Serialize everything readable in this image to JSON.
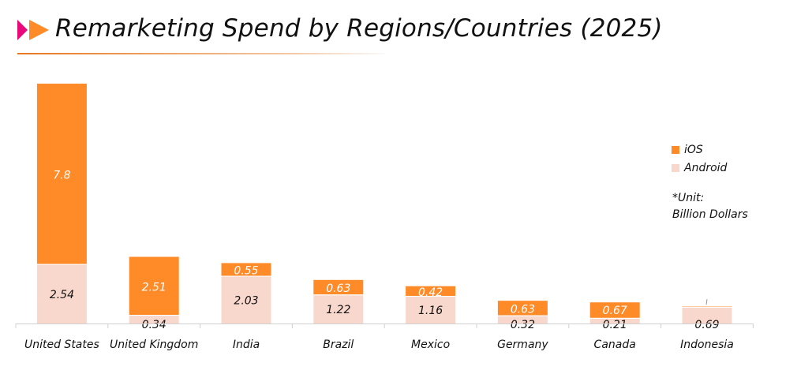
{
  "title": "Remarketing Spend by Regions/Countries (2025)",
  "icon": "double-play-arrow-icon",
  "colors": {
    "ios": "#FF8A28",
    "android": "#F8D8CC",
    "accent_pink": "#E8087A",
    "accent_orange": "#FF8A28"
  },
  "chart_data": {
    "type": "bar",
    "stacked": true,
    "title": "Remarketing Spend by Regions/Countries (2025)",
    "categories": [
      "United States",
      "United Kingdom",
      "India",
      "Brazil",
      "Mexico",
      "Germany",
      "Canada",
      "Indonesia"
    ],
    "series": [
      {
        "name": "Android",
        "values": [
          2.54,
          0.34,
          2.03,
          1.22,
          1.16,
          0.32,
          0.21,
          0.69
        ],
        "labels": [
          "2.54",
          "0.34",
          "2.03",
          "1.22",
          "1.16",
          "0.32",
          "0.21",
          "0.69"
        ]
      },
      {
        "name": "iOS",
        "values": [
          7.8,
          2.51,
          0.55,
          0.63,
          0.42,
          0.63,
          0.67,
          0.02
        ],
        "labels": [
          "7.8",
          "2.51",
          "0.55",
          "0.63",
          "0.42",
          "0.63",
          "0.67",
          ""
        ]
      }
    ],
    "legend": {
      "position": "right",
      "entries": [
        "iOS",
        "Android"
      ]
    },
    "annotation": [
      "*Unit:",
      "Billion Dollars"
    ],
    "xlabel": "",
    "ylabel": "",
    "ylim": [
      0,
      10.5
    ],
    "grid": false
  }
}
